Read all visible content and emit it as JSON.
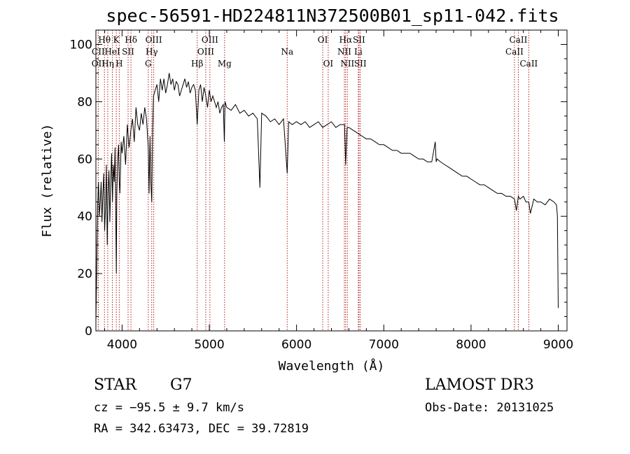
{
  "chart_data": {
    "type": "line",
    "title": "spec-56591-HD224811N372500B01_sp11-042.fits",
    "xlabel": "Wavelength (Å)",
    "ylabel": "Flux (relative)",
    "xlim": [
      3700,
      9100
    ],
    "ylim": [
      0,
      105
    ],
    "x_ticks": [
      4000,
      5000,
      6000,
      7000,
      8000,
      9000
    ],
    "y_ticks": [
      0,
      20,
      40,
      60,
      80,
      100
    ],
    "grid": false,
    "series": [
      {
        "name": "spectrum",
        "color": "#000000",
        "x": [
          3700,
          3710,
          3720,
          3730,
          3740,
          3750,
          3760,
          3770,
          3780,
          3790,
          3800,
          3810,
          3820,
          3830,
          3840,
          3850,
          3860,
          3870,
          3880,
          3890,
          3900,
          3910,
          3920,
          3930,
          3934,
          3940,
          3950,
          3960,
          3968,
          3975,
          3990,
          4000,
          4020,
          4040,
          4060,
          4080,
          4100,
          4120,
          4140,
          4160,
          4180,
          4200,
          4220,
          4240,
          4260,
          4280,
          4300,
          4310,
          4320,
          4330,
          4340,
          4350,
          4360,
          4380,
          4400,
          4420,
          4440,
          4460,
          4480,
          4500,
          4520,
          4540,
          4560,
          4580,
          4600,
          4620,
          4640,
          4660,
          4680,
          4700,
          4720,
          4740,
          4760,
          4780,
          4800,
          4820,
          4840,
          4861,
          4880,
          4900,
          4920,
          4940,
          4960,
          4980,
          5000,
          5020,
          5040,
          5060,
          5080,
          5100,
          5120,
          5140,
          5160,
          5172,
          5180,
          5200,
          5250,
          5300,
          5350,
          5400,
          5450,
          5500,
          5550,
          5580,
          5600,
          5650,
          5700,
          5750,
          5800,
          5850,
          5893,
          5910,
          5950,
          6000,
          6050,
          6100,
          6150,
          6200,
          6250,
          6300,
          6350,
          6400,
          6450,
          6500,
          6550,
          6563,
          6580,
          6600,
          6650,
          6700,
          6750,
          6800,
          6850,
          6900,
          6950,
          7000,
          7050,
          7100,
          7150,
          7200,
          7250,
          7300,
          7350,
          7400,
          7450,
          7500,
          7550,
          7590,
          7600,
          7610,
          7650,
          7700,
          7750,
          7800,
          7850,
          7900,
          7950,
          8000,
          8050,
          8100,
          8150,
          8200,
          8250,
          8300,
          8350,
          8400,
          8450,
          8498,
          8520,
          8542,
          8560,
          8600,
          8630,
          8662,
          8680,
          8720,
          8760,
          8800,
          8850,
          8900,
          8950,
          8980,
          8990,
          9000
        ],
        "y": [
          3,
          22,
          44,
          52,
          40,
          45,
          52,
          38,
          48,
          55,
          35,
          43,
          58,
          30,
          48,
          56,
          38,
          52,
          62,
          45,
          58,
          52,
          64,
          32,
          20,
          48,
          60,
          65,
          52,
          48,
          66,
          62,
          68,
          58,
          72,
          64,
          70,
          74,
          66,
          78,
          72,
          70,
          76,
          72,
          78,
          74,
          64,
          48,
          68,
          52,
          45,
          70,
          82,
          84,
          86,
          80,
          88,
          84,
          88,
          83,
          86,
          90,
          86,
          88,
          84,
          87,
          86,
          82,
          84,
          86,
          88,
          85,
          87,
          83,
          85,
          86,
          84,
          72,
          84,
          86,
          80,
          85,
          82,
          78,
          84,
          80,
          82,
          80,
          78,
          80,
          76,
          78,
          79,
          66,
          80,
          78,
          77,
          79,
          76,
          77,
          75,
          76,
          74,
          50,
          76,
          75,
          73,
          74,
          72,
          74,
          55,
          73,
          72,
          73,
          72,
          73,
          71,
          72,
          73,
          71,
          72,
          73,
          71,
          72,
          72,
          58,
          71,
          71,
          70,
          69,
          68,
          67,
          67,
          66,
          65,
          65,
          64,
          63,
          63,
          62,
          62,
          62,
          61,
          60,
          60,
          59,
          59,
          66,
          59,
          60,
          59,
          58,
          57,
          56,
          55,
          54,
          54,
          53,
          52,
          51,
          51,
          50,
          49,
          48,
          48,
          47,
          47,
          46,
          42,
          47,
          46,
          47,
          45,
          45,
          41,
          46,
          45,
          45,
          44,
          46,
          45,
          44,
          40,
          8
        ]
      }
    ],
    "line_markers": [
      {
        "name": "CII",
        "x": 3727,
        "row": 2
      },
      {
        "name": "OII",
        "x": 3727,
        "row": 3
      },
      {
        "name": "Hθ",
        "x": 3798,
        "row": 1
      },
      {
        "name": "Hη",
        "x": 3836,
        "row": 3
      },
      {
        "name": "HeI",
        "x": 3889,
        "row": 2
      },
      {
        "name": "K",
        "x": 3934,
        "row": 1
      },
      {
        "name": "H",
        "x": 3968,
        "row": 3
      },
      {
        "name": "SII",
        "x": 4069,
        "row": 2
      },
      {
        "name": "Hδ",
        "x": 4102,
        "row": 1
      },
      {
        "name": "G",
        "x": 4300,
        "row": 3
      },
      {
        "name": "OIII",
        "x": 4363,
        "row": 1
      },
      {
        "name": "Hγ",
        "x": 4340,
        "row": 2
      },
      {
        "name": "Hβ",
        "x": 4861,
        "row": 3
      },
      {
        "name": "OIII",
        "x": 4959,
        "row": 2
      },
      {
        "name": "OIII",
        "x": 5007,
        "row": 1
      },
      {
        "name": "Mg",
        "x": 5175,
        "row": 3
      },
      {
        "name": "Na",
        "x": 5893,
        "row": 2
      },
      {
        "name": "OI",
        "x": 6300,
        "row": 1
      },
      {
        "name": "OI",
        "x": 6363,
        "row": 3
      },
      {
        "name": "NII",
        "x": 6548,
        "row": 2
      },
      {
        "name": "Hα",
        "x": 6563,
        "row": 1
      },
      {
        "name": "NII",
        "x": 6583,
        "row": 3
      },
      {
        "name": "Li",
        "x": 6708,
        "row": 2
      },
      {
        "name": "SII",
        "x": 6716,
        "row": 1
      },
      {
        "name": "SII",
        "x": 6731,
        "row": 3
      },
      {
        "name": "CaII",
        "x": 8498,
        "row": 2
      },
      {
        "name": "CaII",
        "x": 8542,
        "row": 1
      },
      {
        "name": "CaII",
        "x": 8662,
        "row": 3
      }
    ]
  },
  "info": {
    "object_class": "STAR",
    "subclass": "G7",
    "survey": "LAMOST DR3",
    "cz": "cz = −95.5 ± 9.7 km/s",
    "obs_date": "Obs-Date: 20131025",
    "coords": "RA = 342.63473, DEC =  39.72819"
  }
}
